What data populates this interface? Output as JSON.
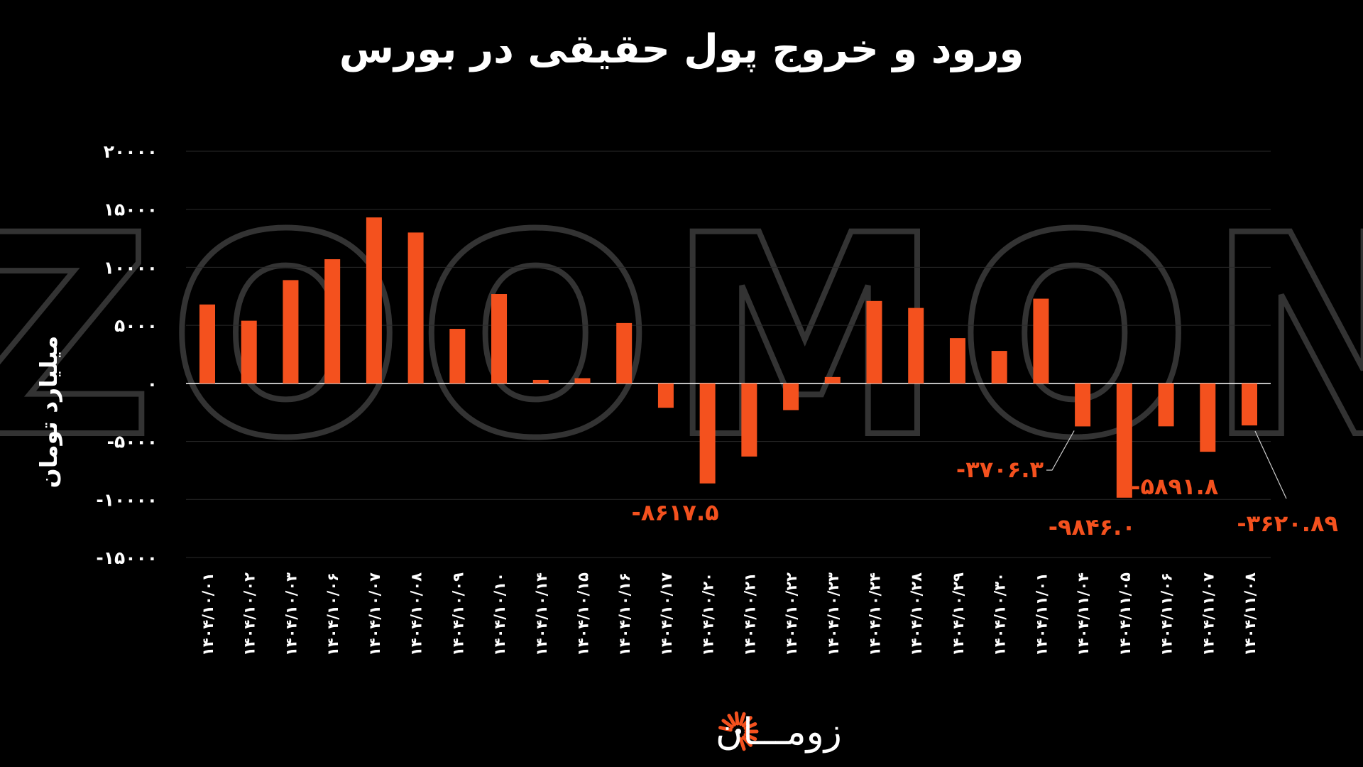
{
  "chart_data": {
    "type": "bar",
    "title": "ورود و خروج پول حقیقی در بورس",
    "xlabel": "",
    "ylabel": "میلیارد تومان",
    "ylim": [
      -15000,
      20000
    ],
    "yticks": [
      20000,
      15000,
      10000,
      5000,
      0,
      -5000,
      -10000,
      -15000
    ],
    "ytick_labels": [
      "۲۰۰۰۰",
      "۱۵۰۰۰",
      "۱۰۰۰۰",
      "۵۰۰۰",
      "۰",
      "-۵۰۰۰",
      "-۱۰۰۰۰",
      "-۱۵۰۰۰"
    ],
    "grid": true,
    "bar_color": "#f4511e",
    "label_color": "#f4511e",
    "categories": [
      "۱۴۰۴/۱۰/۰۱",
      "۱۴۰۴/۱۰/۰۲",
      "۱۴۰۴/۱۰/۰۳",
      "۱۴۰۴/۱۰/۰۶",
      "۱۴۰۴/۱۰/۰۷",
      "۱۴۰۴/۱۰/۰۸",
      "۱۴۰۴/۱۰/۰۹",
      "۱۴۰۴/۱۰/۱۰",
      "۱۴۰۴/۱۰/۱۴",
      "۱۴۰۴/۱۰/۱۵",
      "۱۴۰۴/۱۰/۱۶",
      "۱۴۰۴/۱۰/۱۷",
      "۱۴۰۴/۱۰/۲۰",
      "۱۴۰۴/۱۰/۲۱",
      "۱۴۰۴/۱۰/۲۲",
      "۱۴۰۴/۱۰/۲۳",
      "۱۴۰۴/۱۰/۲۴",
      "۱۴۰۴/۱۰/۲۸",
      "۱۴۰۴/۱۰/۲۹",
      "۱۴۰۴/۱۰/۳۰",
      "۱۴۰۴/۱۱/۰۱",
      "۱۴۰۴/۱۱/۰۴",
      "۱۴۰۴/۱۱/۰۵",
      "۱۴۰۴/۱۱/۰۶",
      "۱۴۰۴/۱۱/۰۷",
      "۱۴۰۴/۱۱/۰۸"
    ],
    "values": [
      6800,
      5400,
      8900,
      10700,
      14300,
      13000,
      4700,
      7700,
      300,
      450,
      5200,
      -2100,
      -8617.5,
      -6300,
      -2300,
      550,
      7100,
      6500,
      3900,
      2800,
      7300,
      -3706.3,
      -9846.0,
      -3700,
      -5891.8,
      -3620.89
    ],
    "data_labels": [
      {
        "index": 12,
        "text": "-۸۶۱۷.۵"
      },
      {
        "index": 21,
        "text": "-۳۷۰۶.۳"
      },
      {
        "index": 22,
        "text": "-۹۸۴۶.۰"
      },
      {
        "index": 24,
        "text": "-۵۸۹۱.۸"
      },
      {
        "index": 25,
        "text": "-۳۶۲۰.۸۹"
      }
    ]
  },
  "watermark": "ZOOMON",
  "brand": {
    "name": "زومـــان",
    "color": "#f4511e",
    "icon": "sunburst-icon"
  }
}
